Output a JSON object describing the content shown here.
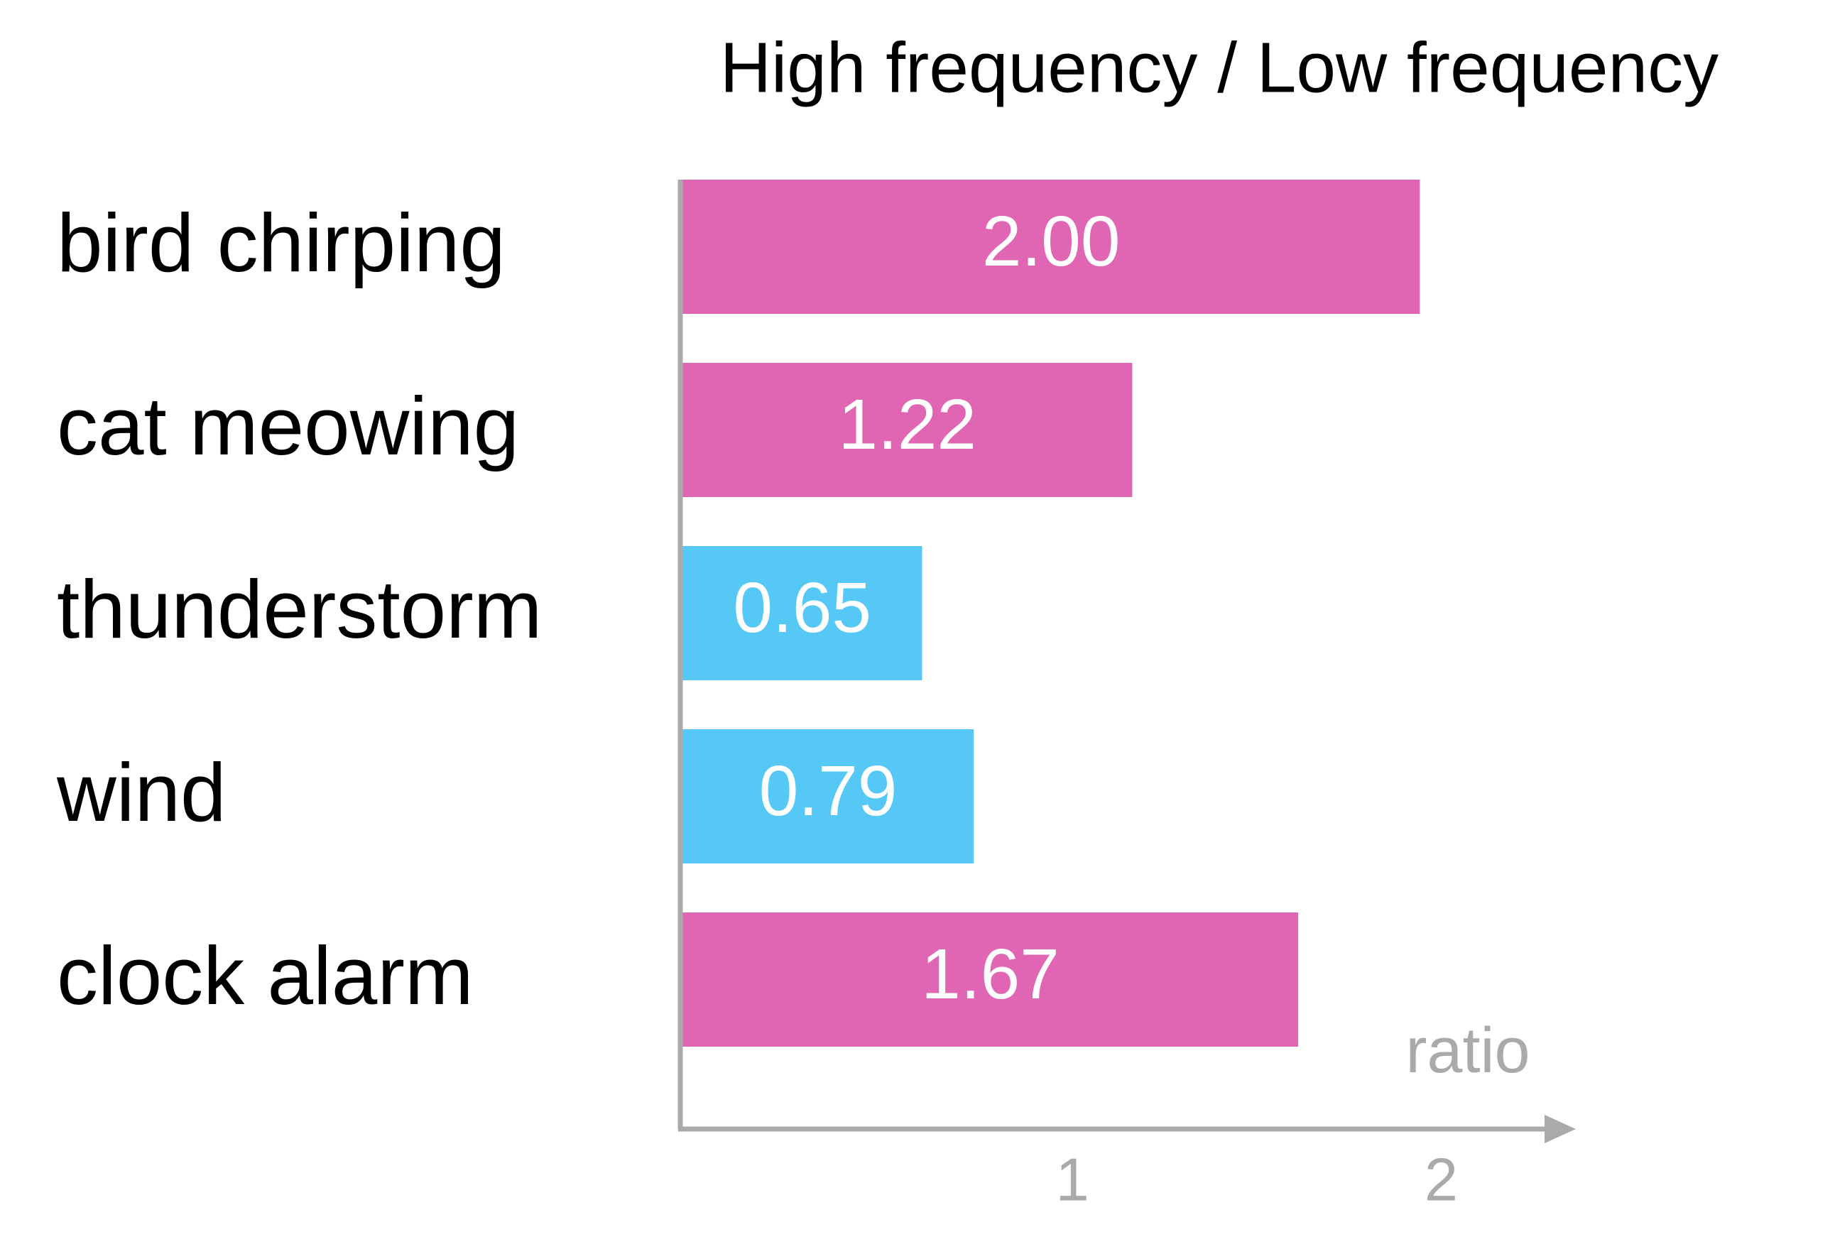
{
  "chart_data": {
    "type": "hbar",
    "title": "High frequency / Low frequency",
    "x_label": "ratio",
    "categories": [
      "bird chirping",
      "cat meowing",
      "thunderstorm",
      "wind",
      "clock alarm"
    ],
    "values": [
      2.0,
      1.22,
      0.65,
      0.79,
      1.67
    ],
    "value_labels": [
      "2.00",
      "1.22",
      "0.65",
      "0.79",
      "1.67"
    ],
    "colors": [
      "#e066b3",
      "#e066b3",
      "#56c8f5",
      "#56c8f5",
      "#e066b3"
    ],
    "xlim": [
      0,
      2.4
    ],
    "xticks": [
      1,
      2
    ],
    "grid": false
  }
}
